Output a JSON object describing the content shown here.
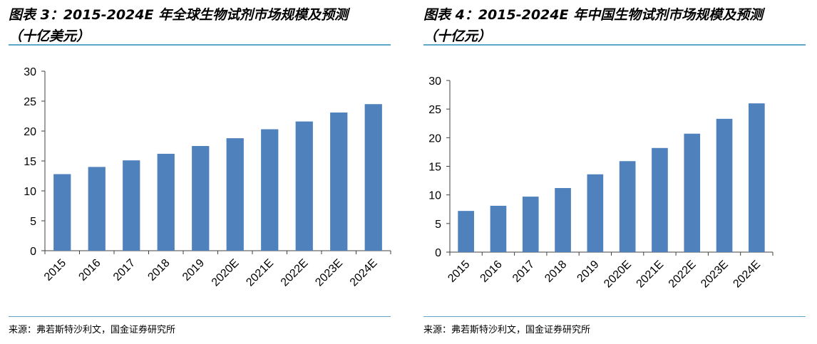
{
  "theme": {
    "bar_color": "#4f81bd",
    "rule_color": "#5fa7c9",
    "axis_color": "#404040"
  },
  "chart_data": [
    {
      "type": "bar",
      "title": "图表 3：2015-2024E 年全球生物试剂市场规模及预测\n（十亿美元）",
      "categories": [
        "2015",
        "2016",
        "2017",
        "2018",
        "2019",
        "2020E",
        "2021E",
        "2022E",
        "2023E",
        "2024E"
      ],
      "values": [
        12.8,
        14.0,
        15.1,
        16.2,
        17.5,
        18.8,
        20.3,
        21.6,
        23.1,
        24.5
      ],
      "ylim": [
        0,
        30
      ],
      "yticks": [
        "0",
        "5",
        "10",
        "15",
        "20",
        "25",
        "30"
      ],
      "grid": false,
      "source": "来源：弗若斯特沙利文，国金证券研究所"
    },
    {
      "type": "bar",
      "title": "图表 4：2015-2024E 年中国生物试剂市场规模及预测\n（十亿元）",
      "categories": [
        "2015",
        "2016",
        "2017",
        "2018",
        "2019",
        "2020E",
        "2021E",
        "2022E",
        "2023E",
        "2024E"
      ],
      "values": [
        7.2,
        8.1,
        9.7,
        11.2,
        13.6,
        15.9,
        18.2,
        20.7,
        23.3,
        26.0
      ],
      "ylim": [
        0,
        30
      ],
      "yticks": [
        "0",
        "5",
        "10",
        "15",
        "20",
        "25",
        "30"
      ],
      "grid": false,
      "source": "来源：弗若斯特沙利文，国金证券研究所"
    }
  ]
}
